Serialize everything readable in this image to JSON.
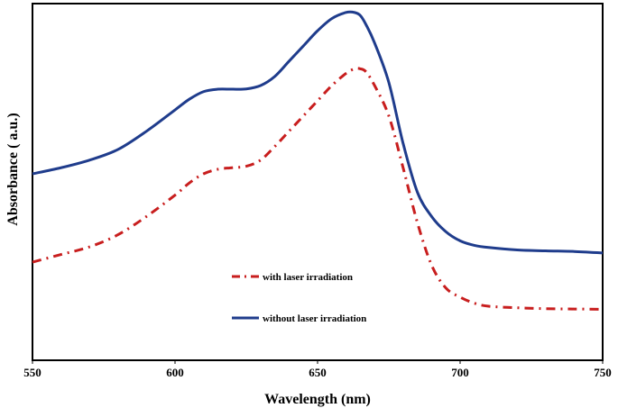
{
  "chart_data": {
    "type": "line",
    "title": "",
    "xlabel": "Wavelength (nm)",
    "ylabel": "Absorbance ( a.u.)",
    "xlim": [
      550,
      750
    ],
    "ylim": [
      0,
      1
    ],
    "xticks": [
      "550",
      "600",
      "650",
      "700",
      "750"
    ],
    "grid": false,
    "legend_position": "center-left",
    "series": [
      {
        "name": "with laser irradiation",
        "color": "#c81e1e",
        "style": "dash-dot",
        "x": [
          550,
          560,
          570,
          580,
          590,
          600,
          605,
          610,
          615,
          620,
          625,
          630,
          635,
          640,
          645,
          650,
          655,
          660,
          663,
          665,
          667,
          670,
          675,
          680,
          685,
          690,
          695,
          700,
          705,
          710,
          720,
          730,
          740,
          750
        ],
        "y": [
          0.21,
          0.235,
          0.26,
          0.3,
          0.36,
          0.43,
          0.47,
          0.5,
          0.515,
          0.52,
          0.525,
          0.545,
          0.59,
          0.64,
          0.69,
          0.74,
          0.79,
          0.83,
          0.845,
          0.845,
          0.835,
          0.79,
          0.69,
          0.52,
          0.34,
          0.2,
          0.125,
          0.095,
          0.075,
          0.065,
          0.06,
          0.057,
          0.056,
          0.055
        ]
      },
      {
        "name": "without laser irradiation",
        "color": "#1f3c8c",
        "style": "solid",
        "x": [
          550,
          560,
          570,
          580,
          590,
          600,
          605,
          610,
          615,
          620,
          625,
          630,
          635,
          640,
          645,
          650,
          655,
          660,
          663,
          665,
          667,
          670,
          675,
          680,
          685,
          690,
          695,
          700,
          705,
          710,
          720,
          730,
          740,
          750
        ],
        "y": [
          0.5,
          0.52,
          0.545,
          0.58,
          0.64,
          0.71,
          0.745,
          0.77,
          0.778,
          0.778,
          0.779,
          0.79,
          0.82,
          0.87,
          0.92,
          0.97,
          1.01,
          1.03,
          1.03,
          1.02,
          0.99,
          0.93,
          0.8,
          0.6,
          0.44,
          0.36,
          0.31,
          0.28,
          0.265,
          0.258,
          0.25,
          0.247,
          0.245,
          0.24
        ]
      }
    ]
  }
}
